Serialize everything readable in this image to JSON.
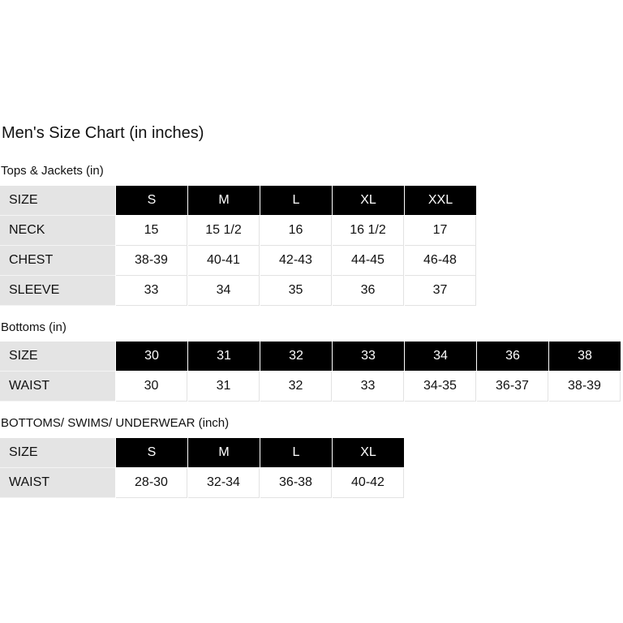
{
  "title": "Men's Size Chart  (in inches)",
  "tables": [
    {
      "heading": "Tops & Jackets (in)",
      "header": {
        "label": "SIZE",
        "values": [
          "S",
          "M",
          "L",
          "XL",
          "XXL"
        ]
      },
      "rows": [
        {
          "label": "NECK",
          "values": [
            "15",
            "15 1/2",
            "16",
            "16 1/2",
            "17"
          ]
        },
        {
          "label": "CHEST",
          "values": [
            "38-39",
            "40-41",
            "42-43",
            "44-45",
            "46-48"
          ]
        },
        {
          "label": "SLEEVE",
          "values": [
            "33",
            "34",
            "35",
            "36",
            "37"
          ]
        }
      ]
    },
    {
      "heading": "Bottoms (in)",
      "header": {
        "label": "SIZE",
        "values": [
          "30",
          "31",
          "32",
          "33",
          "34",
          "36",
          "38"
        ]
      },
      "rows": [
        {
          "label": "WAIST",
          "values": [
            "30",
            "31",
            "32",
            "33",
            "34-35",
            "36-37",
            "38-39"
          ]
        }
      ]
    },
    {
      "heading": "BOTTOMS/ SWIMS/ UNDERWEAR (inch)",
      "header": {
        "label": "SIZE",
        "values": [
          "S",
          "M",
          "L",
          "XL"
        ]
      },
      "rows": [
        {
          "label": "WAIST",
          "values": [
            "28-30",
            "32-34",
            "36-38",
            "40-42"
          ]
        }
      ]
    }
  ]
}
